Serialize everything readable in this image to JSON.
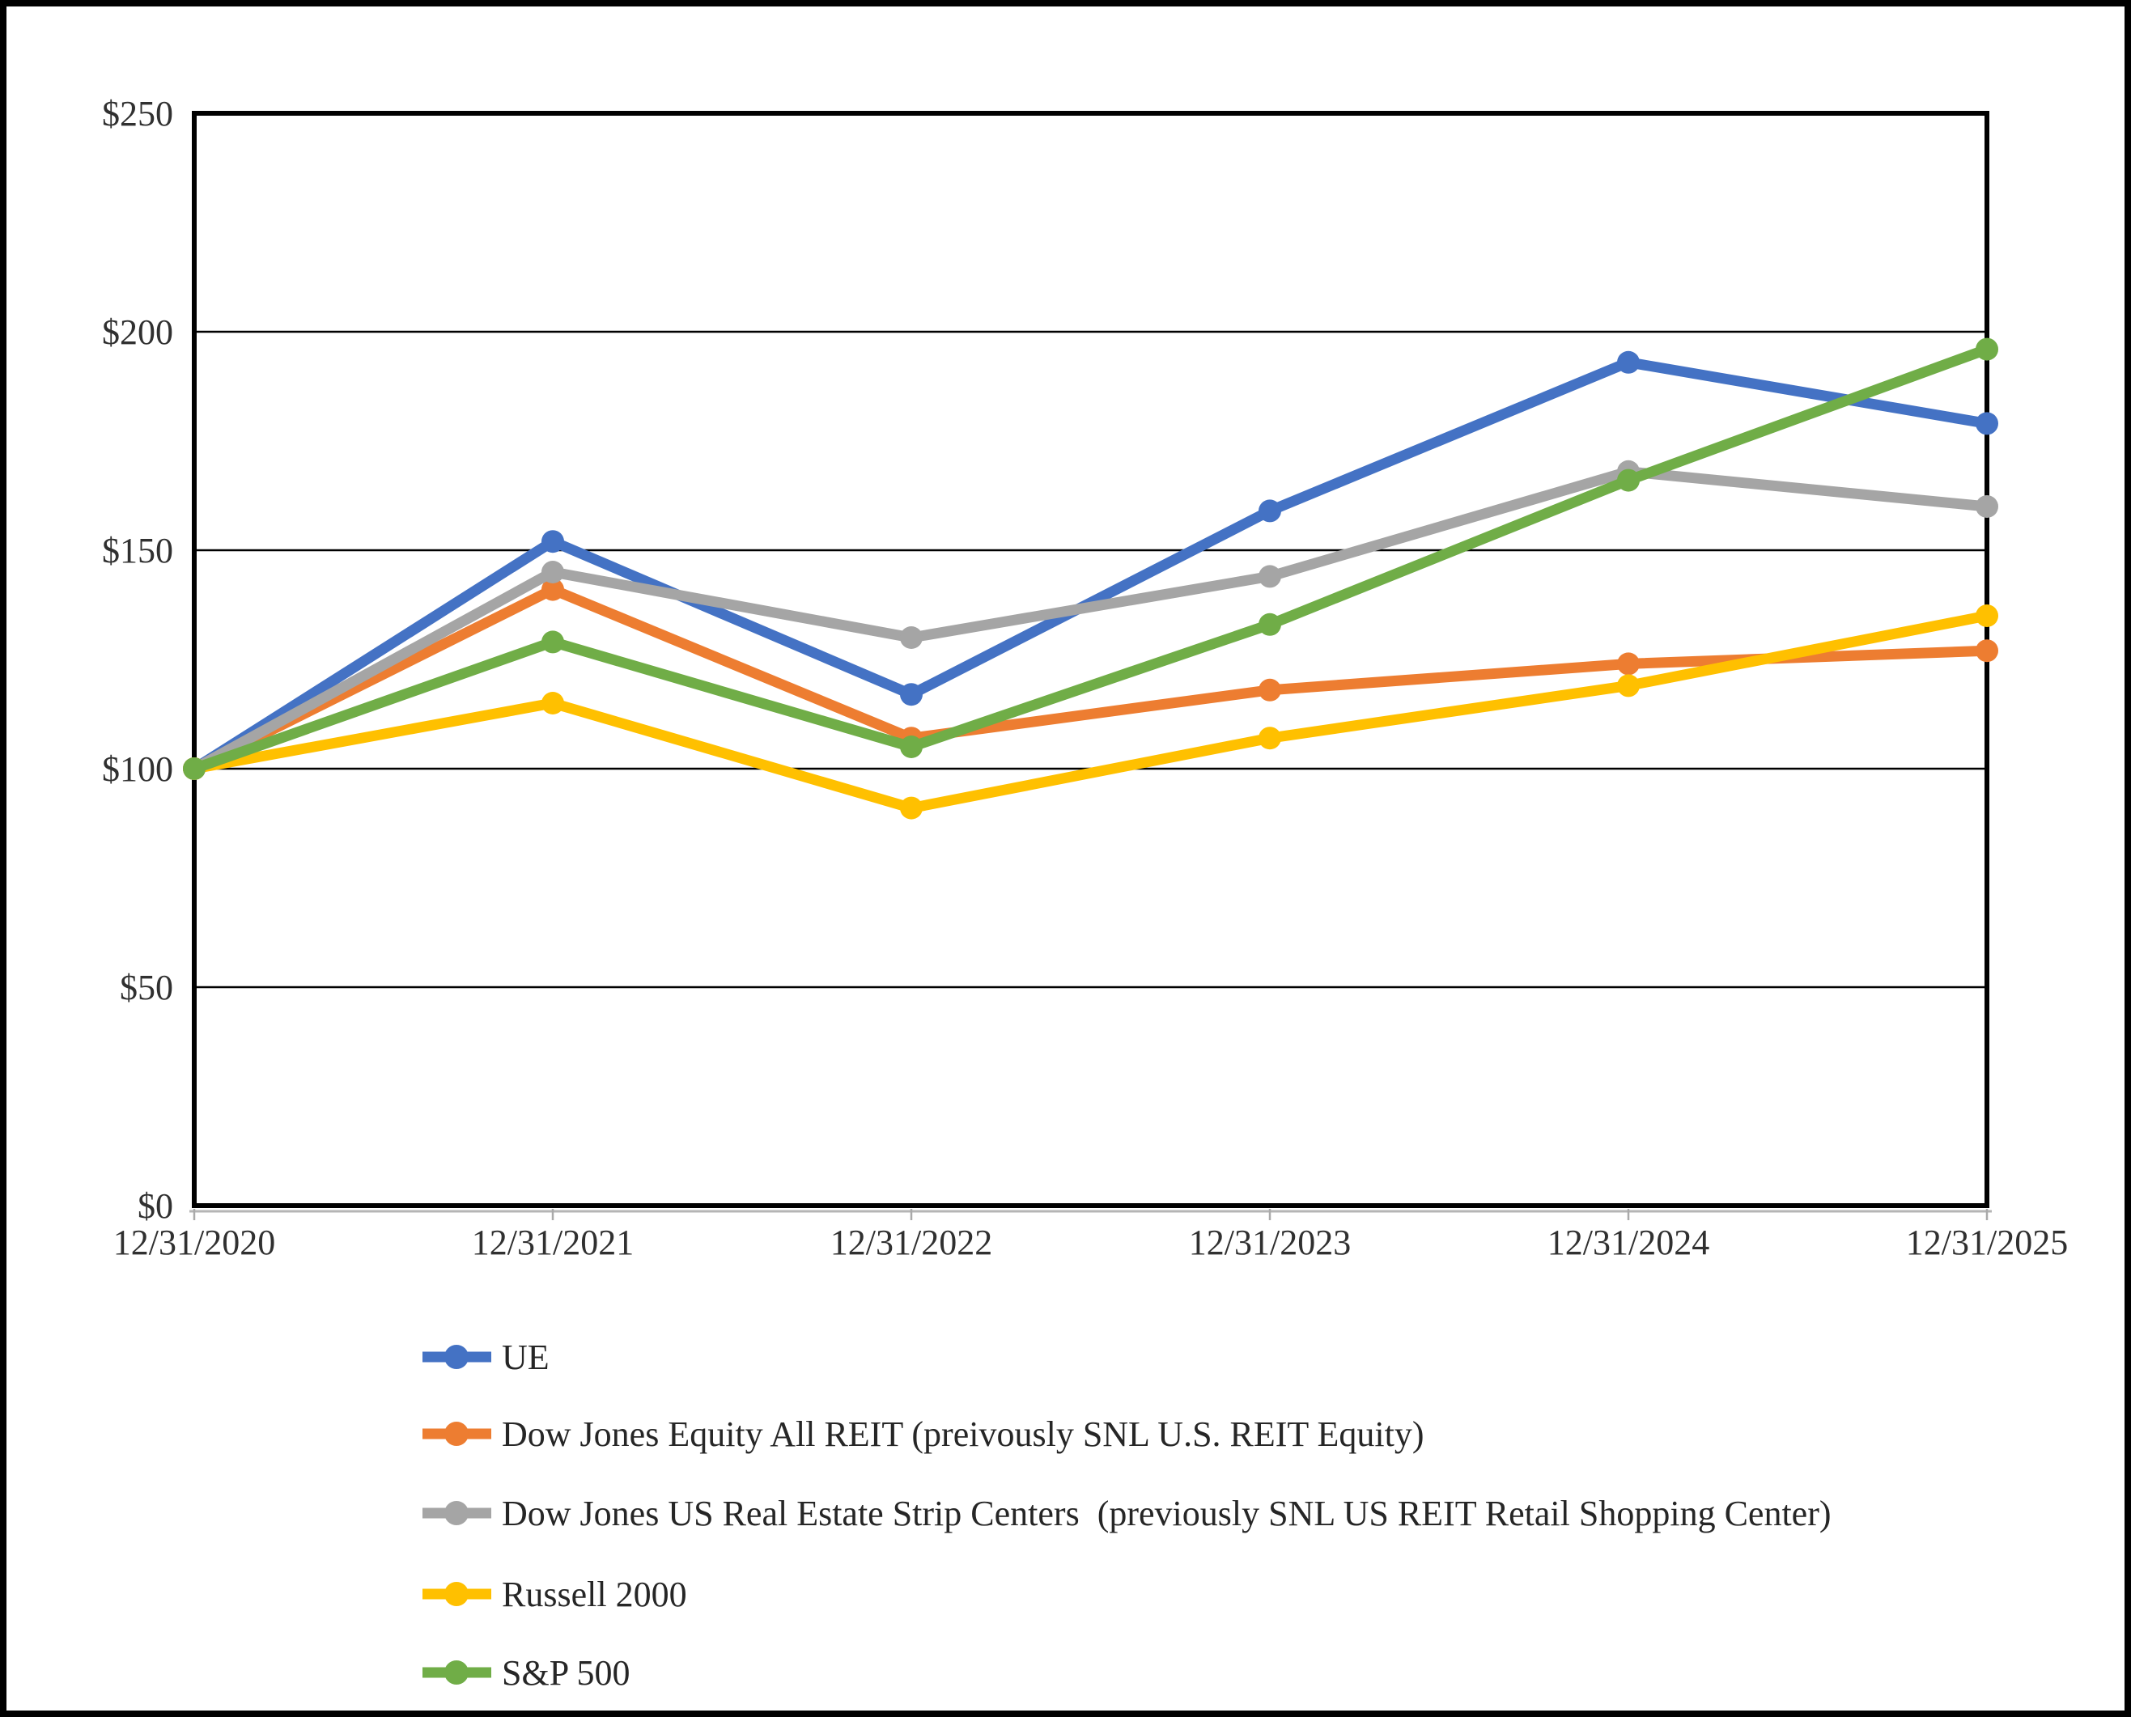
{
  "chart_data": {
    "type": "line",
    "title": "",
    "categories": [
      "12/31/2020",
      "12/31/2021",
      "12/31/2022",
      "12/31/2023",
      "12/31/2024",
      "12/31/2025"
    ],
    "series": [
      {
        "key": "ue",
        "name": "UE",
        "color": "#4472C4",
        "values": [
          100,
          152,
          117,
          159,
          193,
          179
        ]
      },
      {
        "key": "dow-jones-equity-all-reit",
        "name": "Dow Jones Equity All REIT (preivously SNL U.S. REIT Equity)",
        "color": "#ED7D31",
        "values": [
          100,
          141,
          107,
          118,
          124,
          127
        ]
      },
      {
        "key": "dow-jones-us-real-estate-strip-centers",
        "name": "Dow Jones US Real Estate Strip Centers  (previously SNL US REIT Retail Shopping Center)",
        "color": "#A5A5A5",
        "values": [
          100,
          145,
          130,
          144,
          168,
          160
        ]
      },
      {
        "key": "russell-2000",
        "name": "Russell 2000",
        "color": "#FFC000",
        "values": [
          100,
          115,
          91,
          107,
          119,
          135
        ]
      },
      {
        "key": "sp-500",
        "name": "S&P 500",
        "color": "#70AD47",
        "values": [
          100,
          129,
          105,
          133,
          166,
          196
        ]
      }
    ],
    "y_axis": {
      "min": 0,
      "max": 250,
      "tick_step": 50,
      "tick_labels": [
        "$0",
        "$50",
        "$100",
        "$150",
        "$200",
        "$250"
      ]
    },
    "x_axis": {
      "tick_labels": [
        "12/31/2020",
        "12/31/2021",
        "12/31/2022",
        "12/31/2023",
        "12/31/2024",
        "12/31/2025"
      ]
    },
    "grid": "horizontal",
    "legend_position": "bottom-left"
  }
}
